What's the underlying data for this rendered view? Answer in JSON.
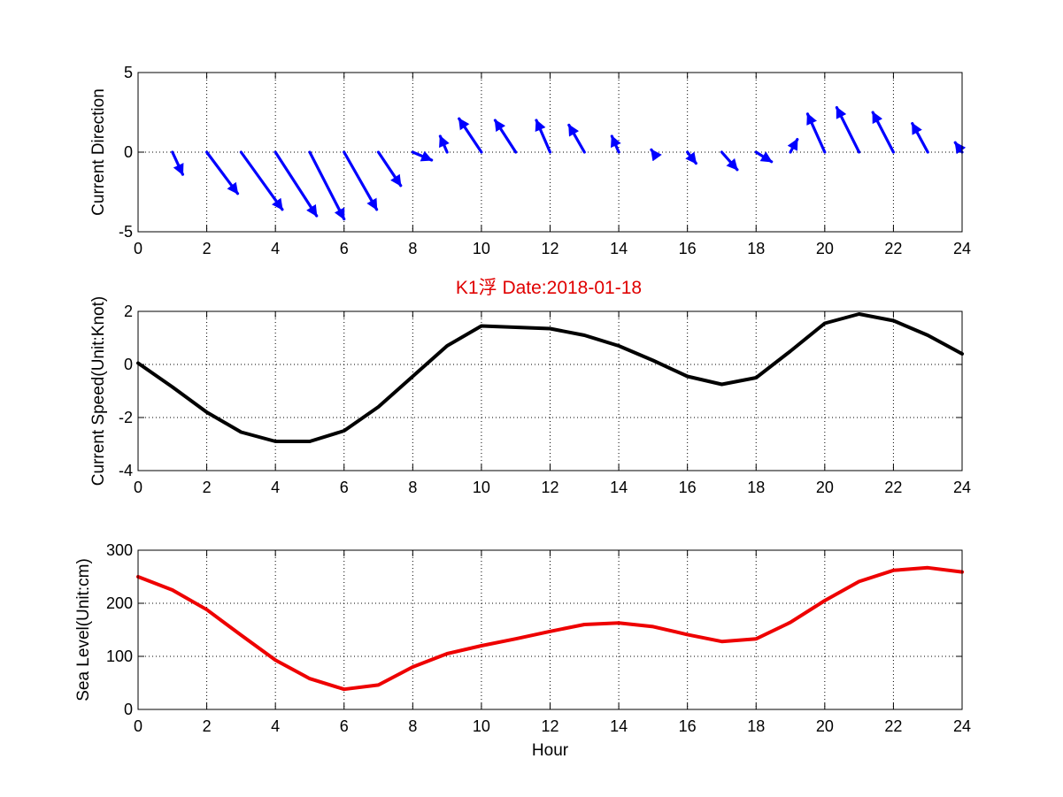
{
  "figure": {
    "title": "K1浮   Date:2018-01-18",
    "title_color": "#e00000"
  },
  "chart_data": [
    {
      "type": "quiver",
      "ylabel": "Current Direction",
      "xlim": [
        0,
        24
      ],
      "ylim": [
        -5,
        5
      ],
      "xticks": [
        "0",
        "2",
        "4",
        "6",
        "8",
        "10",
        "12",
        "14",
        "16",
        "18",
        "20",
        "22",
        "24"
      ],
      "yticks": [
        "5",
        "0",
        "-5"
      ],
      "grid": true,
      "color": "#0000ff",
      "vectors": [
        {
          "x": 1,
          "u": 0.3,
          "v": -1.4
        },
        {
          "x": 2,
          "u": 0.9,
          "v": -2.6
        },
        {
          "x": 3,
          "u": 1.2,
          "v": -3.6
        },
        {
          "x": 4,
          "u": 1.2,
          "v": -4.0
        },
        {
          "x": 5,
          "u": 1.0,
          "v": -4.2
        },
        {
          "x": 6,
          "u": 0.95,
          "v": -3.6
        },
        {
          "x": 7,
          "u": 0.65,
          "v": -2.1
        },
        {
          "x": 8,
          "u": 0.55,
          "v": -0.5
        },
        {
          "x": 9,
          "u": -0.2,
          "v": 1.0
        },
        {
          "x": 10,
          "u": -0.65,
          "v": 2.1
        },
        {
          "x": 11,
          "u": -0.6,
          "v": 2.0
        },
        {
          "x": 12,
          "u": -0.4,
          "v": 2.0
        },
        {
          "x": 13,
          "u": -0.45,
          "v": 1.7
        },
        {
          "x": 14,
          "u": -0.2,
          "v": 1.0
        },
        {
          "x": 15,
          "u": -0.05,
          "v": 0.15
        },
        {
          "x": 16,
          "u": 0.25,
          "v": -0.7
        },
        {
          "x": 17,
          "u": 0.45,
          "v": -1.1
        },
        {
          "x": 18,
          "u": 0.45,
          "v": -0.6
        },
        {
          "x": 19,
          "u": 0.2,
          "v": 0.8
        },
        {
          "x": 20,
          "u": -0.5,
          "v": 2.4
        },
        {
          "x": 21,
          "u": -0.65,
          "v": 2.8
        },
        {
          "x": 22,
          "u": -0.6,
          "v": 2.5
        },
        {
          "x": 23,
          "u": -0.45,
          "v": 1.8
        },
        {
          "x": 24,
          "u": -0.2,
          "v": 0.6
        }
      ]
    },
    {
      "type": "line",
      "ylabel": "Current Speed(Unit:Knot)",
      "xlim": [
        0,
        24
      ],
      "ylim": [
        -4,
        2
      ],
      "xticks": [
        "0",
        "2",
        "4",
        "6",
        "8",
        "10",
        "12",
        "14",
        "16",
        "18",
        "20",
        "22",
        "24"
      ],
      "yticks": [
        "2",
        "0",
        "-2",
        "-4"
      ],
      "grid": true,
      "color": "#000000",
      "x": [
        0,
        1,
        2,
        3,
        4,
        5,
        6,
        7,
        8,
        9,
        10,
        11,
        12,
        13,
        14,
        15,
        16,
        17,
        18,
        19,
        20,
        21,
        22,
        23,
        24
      ],
      "y": [
        0.05,
        -0.85,
        -1.8,
        -2.55,
        -2.9,
        -2.9,
        -2.5,
        -1.6,
        -0.45,
        0.7,
        1.45,
        1.4,
        1.35,
        1.1,
        0.7,
        0.15,
        -0.45,
        -0.75,
        -0.5,
        0.5,
        1.55,
        1.9,
        1.65,
        1.1,
        0.4
      ]
    },
    {
      "type": "line",
      "ylabel": "Sea Level(Unit:cm)",
      "xlabel": "Hour",
      "xlim": [
        0,
        24
      ],
      "ylim": [
        0,
        300
      ],
      "xticks": [
        "0",
        "2",
        "4",
        "6",
        "8",
        "10",
        "12",
        "14",
        "16",
        "18",
        "20",
        "22",
        "24"
      ],
      "yticks": [
        "300",
        "200",
        "100",
        "0"
      ],
      "grid": true,
      "color": "#ee0000",
      "x": [
        0,
        1,
        2,
        3,
        4,
        5,
        6,
        7,
        8,
        9,
        10,
        11,
        12,
        13,
        14,
        15,
        16,
        17,
        18,
        19,
        20,
        21,
        22,
        23,
        24
      ],
      "y": [
        250,
        225,
        188,
        140,
        93,
        58,
        38,
        46,
        80,
        105,
        120,
        133,
        147,
        160,
        163,
        156,
        141,
        128,
        133,
        164,
        205,
        241,
        262,
        267,
        259
      ]
    }
  ]
}
